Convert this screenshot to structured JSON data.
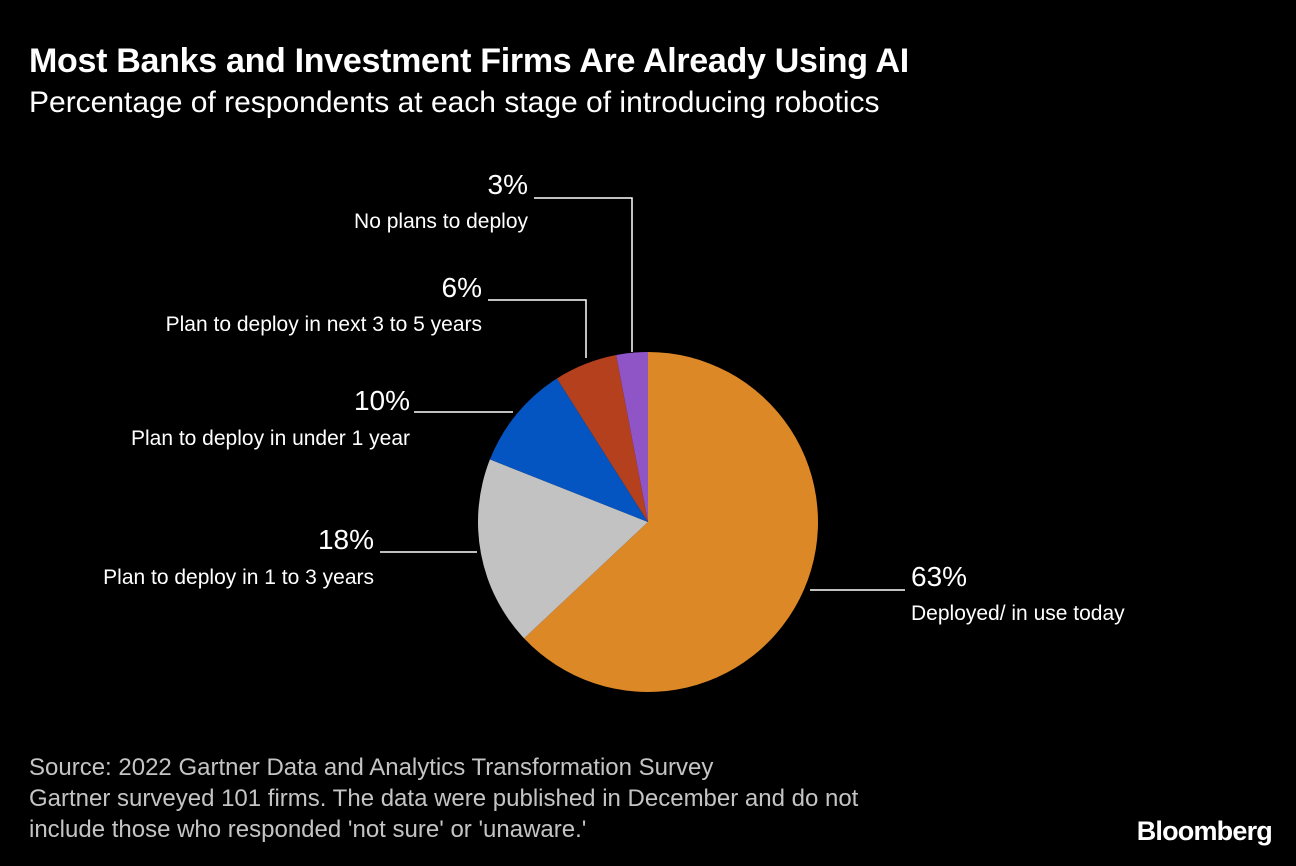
{
  "header": {
    "title": "Most Banks and Investment Firms Are Already Using AI",
    "subtitle": "Percentage of respondents at each stage of introducing robotics"
  },
  "chart_data": {
    "type": "pie",
    "title": "Most Banks and Investment Firms Are Already Using AI",
    "subtitle": "Percentage of respondents at each stage of introducing robotics",
    "start_angle_deg": 0,
    "direction": "clockwise",
    "slices": [
      {
        "label": "Deployed/ in use today",
        "value": 63,
        "value_label": "63%",
        "color": "#dd8826",
        "label_side": "right"
      },
      {
        "label": "Plan to deploy in 1 to 3 years",
        "value": 18,
        "value_label": "18%",
        "color": "#c2c2c2",
        "label_side": "left"
      },
      {
        "label": "Plan to deploy in under 1 year",
        "value": 10,
        "value_label": "10%",
        "color": "#0455c2",
        "label_side": "left"
      },
      {
        "label": "Plan to deploy in next 3 to 5 years",
        "value": 6,
        "value_label": "6%",
        "color": "#b5401d",
        "label_side": "left"
      },
      {
        "label": "No plans to deploy",
        "value": 3,
        "value_label": "3%",
        "color": "#8f54c6",
        "label_side": "left"
      }
    ]
  },
  "footer": {
    "source": "Source: 2022 Gartner Data and Analytics Transformation Survey",
    "note_line1": "Gartner surveyed 101 firms. The data were published in December and do not",
    "note_line2": "include those who responded 'not sure' or 'unaware.'"
  },
  "brand": "Bloomberg"
}
